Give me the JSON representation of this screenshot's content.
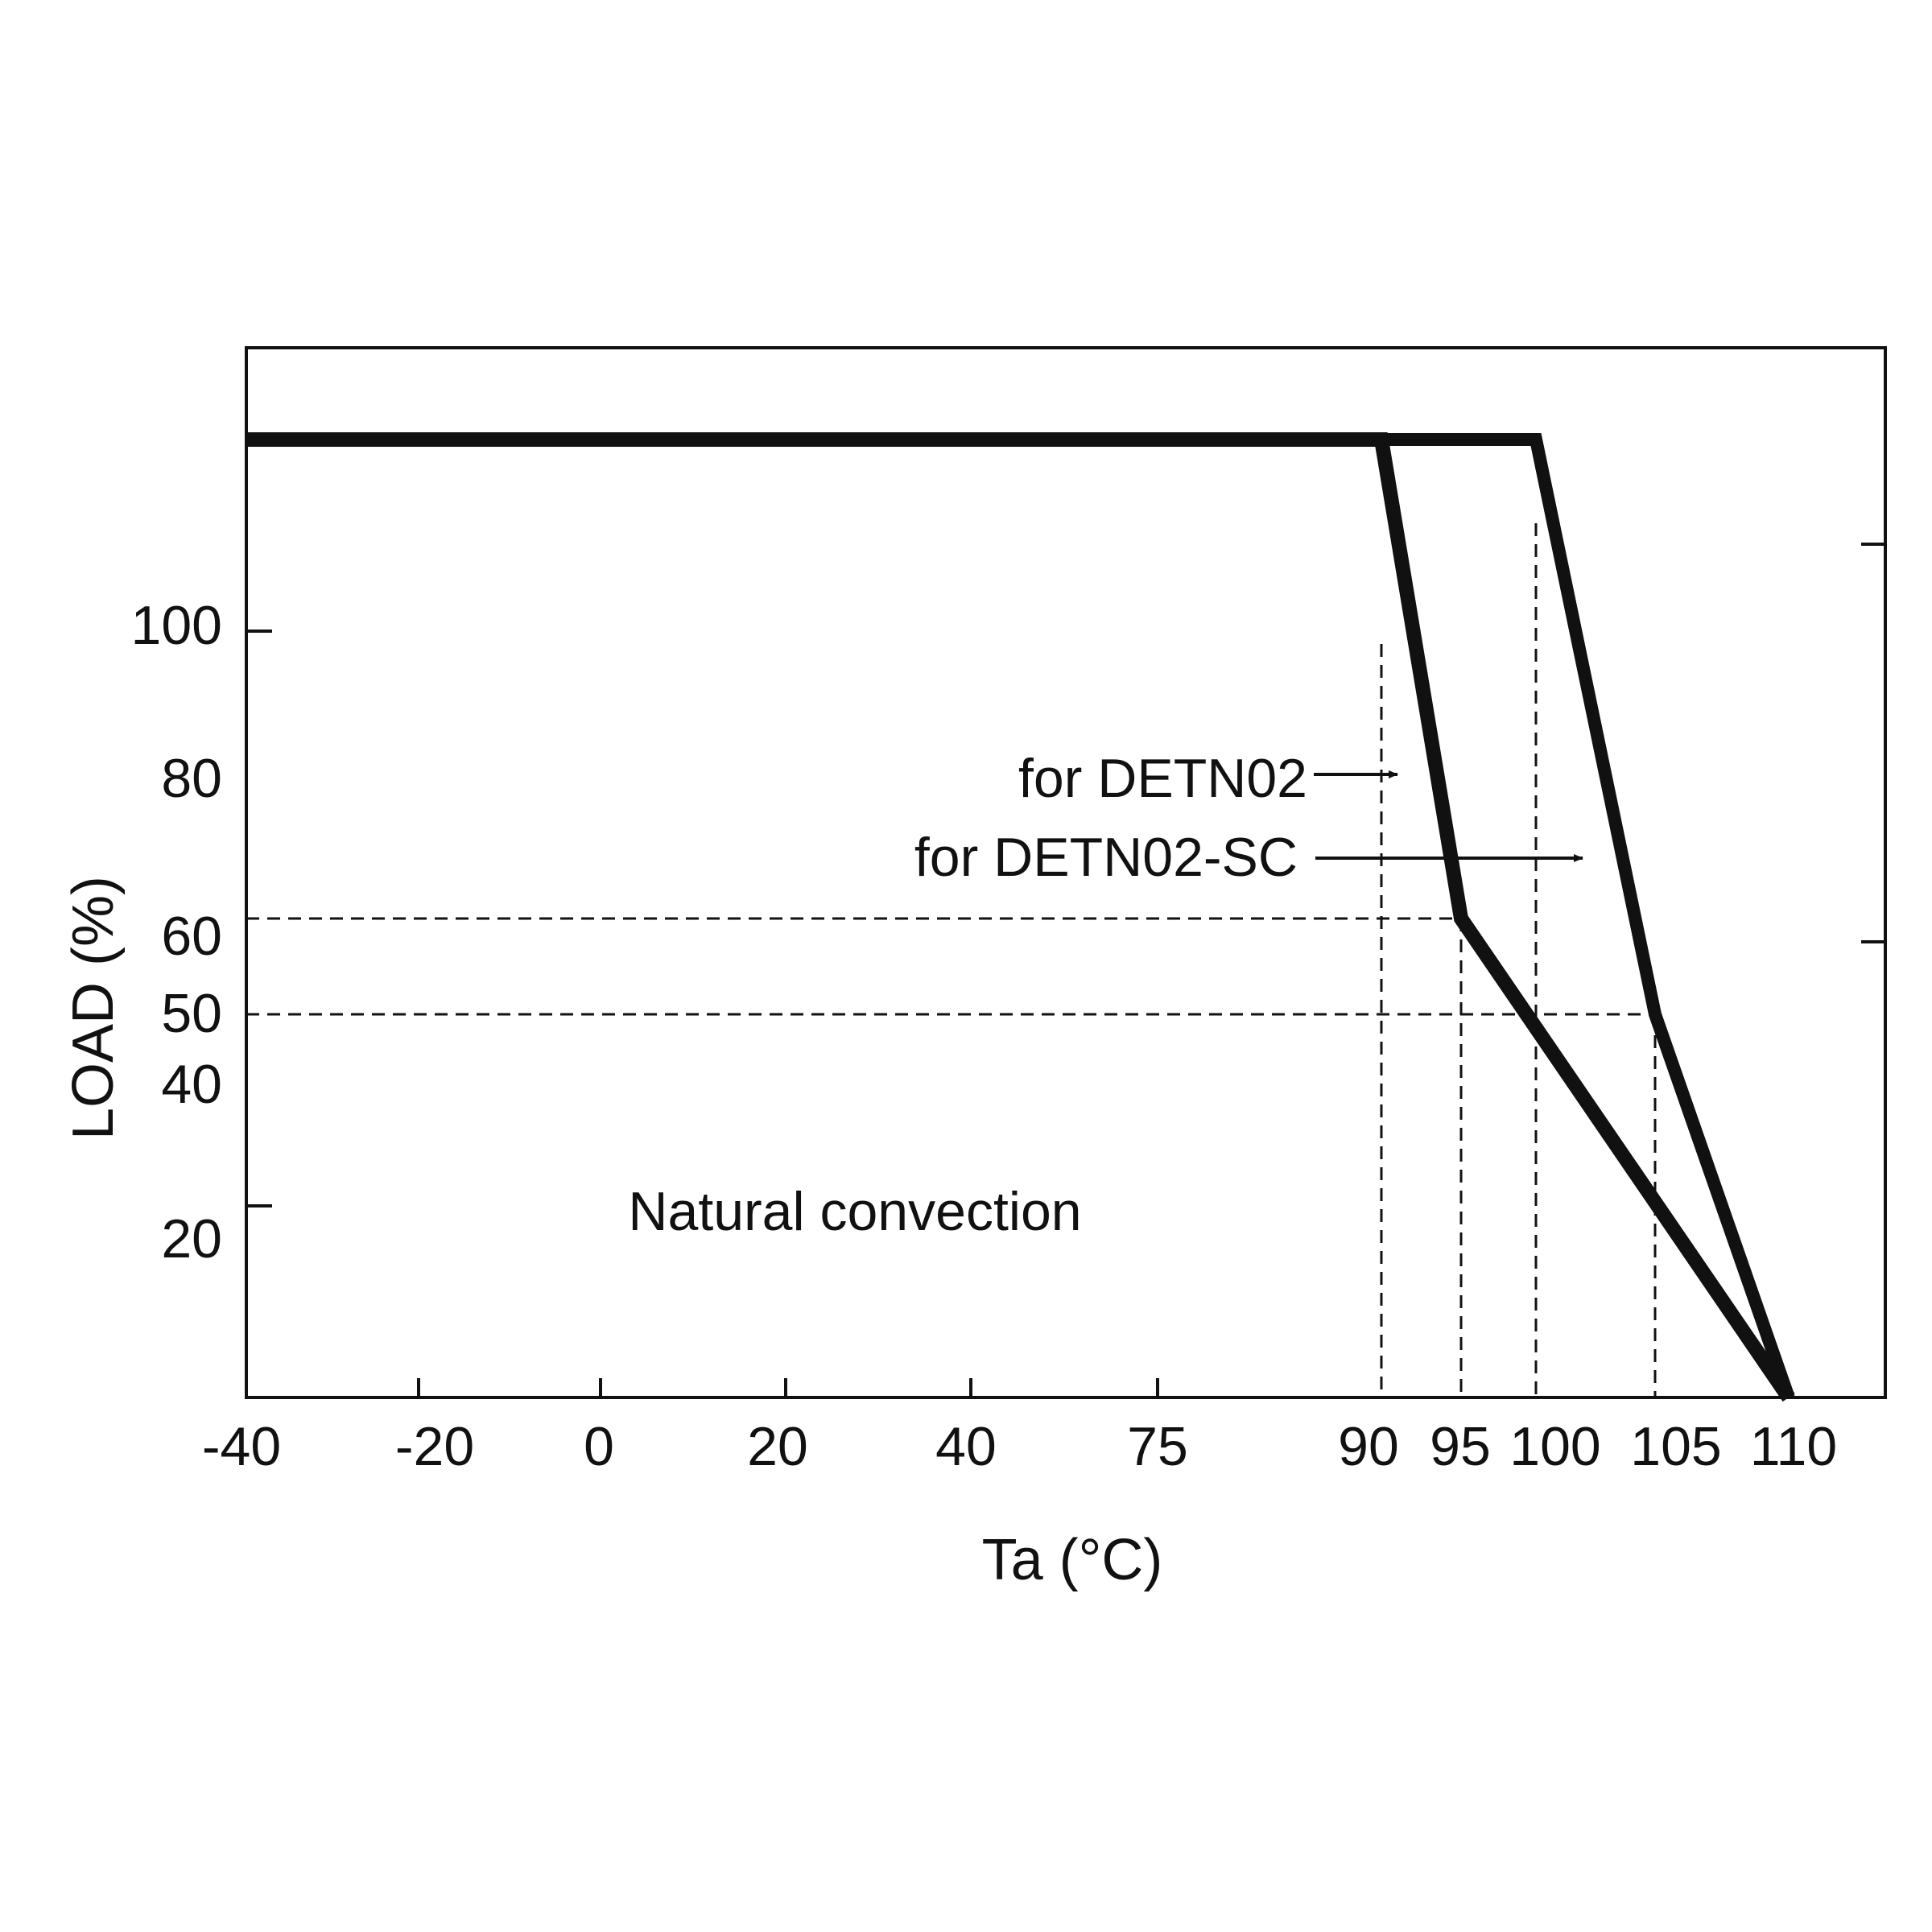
{
  "chart_data": {
    "type": "line",
    "xlabel": "Ta (°C)",
    "ylabel": "LOAD (%)",
    "x_ticks": [
      "-40",
      "-20",
      "0",
      "20",
      "40",
      "75",
      "90",
      "95",
      "100",
      "105",
      "110"
    ],
    "y_ticks": [
      "100",
      "80",
      "60",
      "50",
      "40",
      "20"
    ],
    "series": [
      {
        "name": "for DETN02",
        "points": [
          {
            "x": "-40",
            "y": 100
          },
          {
            "x": "90",
            "y": 100
          },
          {
            "x": "95",
            "y": 50
          },
          {
            "x": "110",
            "y": 0
          }
        ]
      },
      {
        "name": "for DETN02-SC",
        "points": [
          {
            "x": "-40",
            "y": 100
          },
          {
            "x": "100",
            "y": 100
          },
          {
            "x": "105",
            "y": 40
          },
          {
            "x": "110",
            "y": 0
          }
        ]
      }
    ],
    "reference_lines": {
      "horizontal": [
        50,
        40
      ],
      "vertical": [
        "90",
        "95",
        "100",
        "105"
      ]
    },
    "annotations": [
      {
        "text": "Natural convection"
      }
    ],
    "grid": false,
    "legend": "inline annotations with arrows"
  },
  "colors": {
    "line": "#111111",
    "background": "#ffffff"
  }
}
